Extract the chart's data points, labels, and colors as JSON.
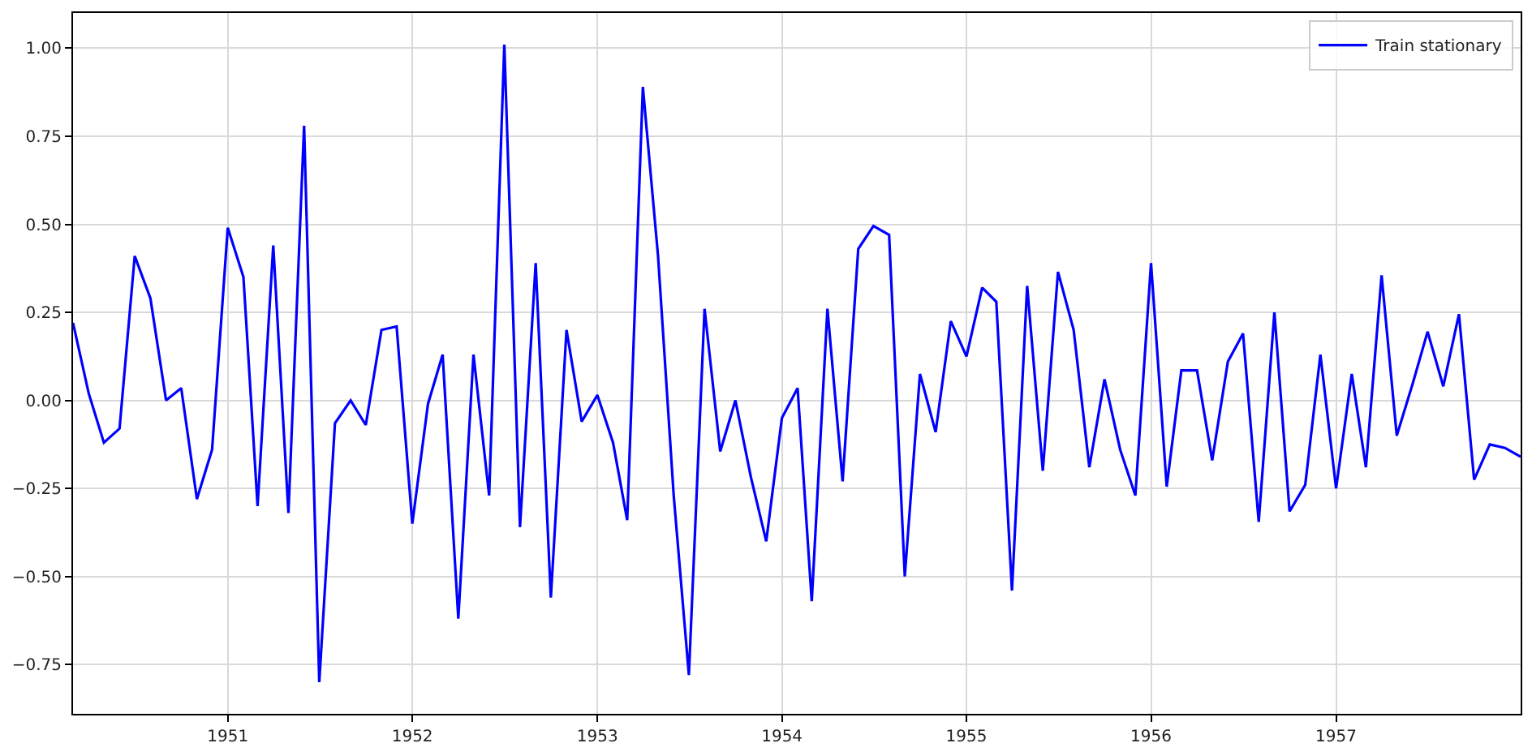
{
  "chart_data": {
    "type": "line",
    "x": [
      "1950-03",
      "1950-04",
      "1950-05",
      "1950-06",
      "1950-07",
      "1950-08",
      "1950-09",
      "1950-10",
      "1950-11",
      "1950-12",
      "1951-01",
      "1951-02",
      "1951-03",
      "1951-04",
      "1951-05",
      "1951-06",
      "1951-07",
      "1951-08",
      "1951-09",
      "1951-10",
      "1951-11",
      "1951-12",
      "1952-01",
      "1952-02",
      "1952-03",
      "1952-04",
      "1952-05",
      "1952-06",
      "1952-07",
      "1952-08",
      "1952-09",
      "1952-10",
      "1952-11",
      "1952-12",
      "1953-01",
      "1953-02",
      "1953-03",
      "1953-04",
      "1953-05",
      "1953-06",
      "1953-07",
      "1953-08",
      "1953-09",
      "1953-10",
      "1953-11",
      "1953-12",
      "1954-01",
      "1954-02",
      "1954-03",
      "1954-04",
      "1954-05",
      "1954-06",
      "1954-07",
      "1954-08",
      "1954-09",
      "1954-10",
      "1954-11",
      "1954-12",
      "1955-01",
      "1955-02",
      "1955-03",
      "1955-04",
      "1955-05",
      "1955-06",
      "1955-07",
      "1955-08",
      "1955-09",
      "1955-10",
      "1955-11",
      "1955-12",
      "1956-01",
      "1956-02",
      "1956-03",
      "1956-04",
      "1956-05",
      "1956-06",
      "1956-07",
      "1956-08",
      "1956-09",
      "1956-10",
      "1956-11",
      "1956-12",
      "1957-01",
      "1957-02",
      "1957-03",
      "1957-04",
      "1957-05",
      "1957-06",
      "1957-07",
      "1957-08",
      "1957-09",
      "1957-10",
      "1957-11",
      "1957-12",
      "1958-01"
    ],
    "series": [
      {
        "name": "Train stationary",
        "color": "#0000ff",
        "values": [
          0.22,
          0.02,
          -0.12,
          -0.08,
          0.41,
          0.29,
          0.0,
          0.035,
          -0.28,
          -0.14,
          0.49,
          0.35,
          -0.3,
          0.44,
          -0.32,
          0.78,
          -0.8,
          -0.065,
          0.0,
          -0.07,
          0.2,
          0.21,
          -0.35,
          -0.01,
          0.13,
          -0.62,
          0.13,
          -0.27,
          1.01,
          -0.36,
          0.39,
          -0.56,
          0.2,
          -0.06,
          0.015,
          -0.12,
          -0.34,
          0.89,
          0.41,
          -0.27,
          -0.78,
          0.26,
          -0.145,
          0.0,
          -0.22,
          -0.4,
          -0.05,
          0.035,
          -0.57,
          0.26,
          -0.23,
          0.43,
          0.495,
          0.47,
          -0.5,
          0.075,
          -0.09,
          0.225,
          0.125,
          0.32,
          0.28,
          -0.54,
          0.325,
          -0.2,
          0.365,
          0.2,
          -0.19,
          0.06,
          -0.14,
          -0.27,
          0.39,
          -0.245,
          0.085,
          0.085,
          -0.17,
          0.11,
          0.19,
          -0.345,
          0.25,
          -0.315,
          -0.24,
          0.13,
          -0.25,
          0.075,
          -0.19,
          0.355,
          -0.1,
          0.045,
          0.195,
          0.04,
          0.245,
          -0.225,
          -0.125,
          -0.135,
          -0.16
        ]
      }
    ],
    "xlim": [
      "1950-03",
      "1958-01"
    ],
    "xticks": [
      "1951",
      "1952",
      "1953",
      "1954",
      "1955",
      "1956",
      "1957"
    ],
    "ylim": [
      -0.89,
      1.1
    ],
    "yticks": [
      {
        "value": -0.75,
        "label": "−0.75"
      },
      {
        "value": -0.5,
        "label": "−0.50"
      },
      {
        "value": -0.25,
        "label": "−0.25"
      },
      {
        "value": 0,
        "label": "0.00"
      },
      {
        "value": 0.25,
        "label": "0.25"
      },
      {
        "value": 0.5,
        "label": "0.50"
      },
      {
        "value": 0.75,
        "label": "0.75"
      },
      {
        "value": 1,
        "label": "1.00"
      }
    ],
    "grid": true,
    "legend": "top right",
    "line_style": "solid"
  }
}
